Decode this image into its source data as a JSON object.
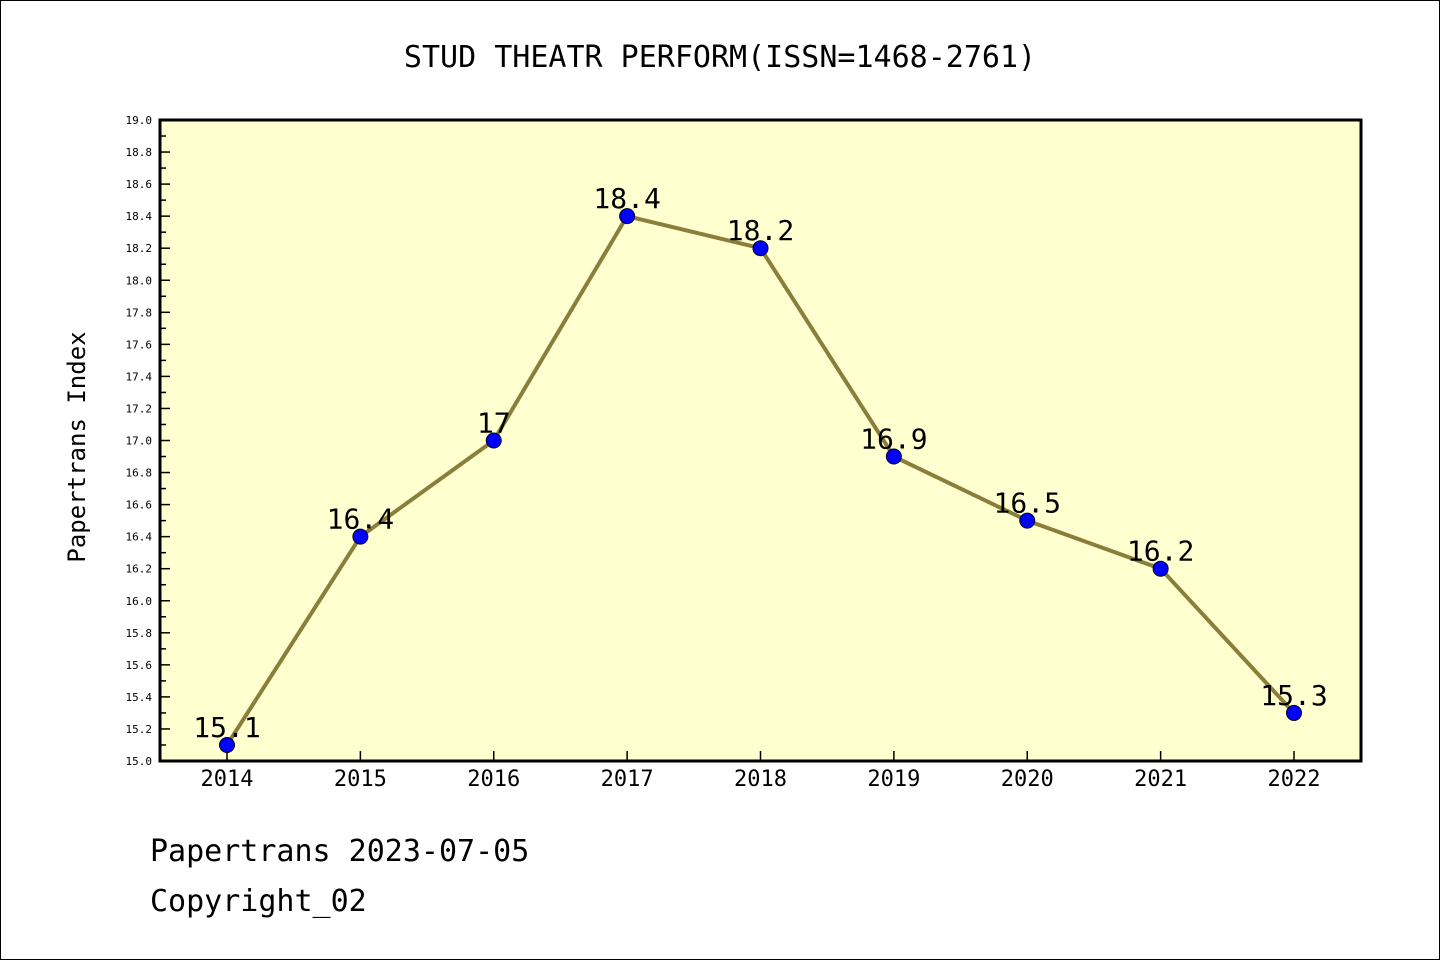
{
  "chart_data": {
    "type": "line",
    "title": "STUD THEATR PERFORM(ISSN=1468-2761)",
    "xlabel": "",
    "ylabel": "Papertrans Index",
    "categories": [
      "2014",
      "2015",
      "2016",
      "2017",
      "2018",
      "2019",
      "2020",
      "2021",
      "2022"
    ],
    "series": [
      {
        "values": [
          15.1,
          16.4,
          17,
          18.4,
          18.2,
          16.9,
          16.5,
          16.2,
          15.3
        ],
        "labels": [
          "15.1",
          "16.4",
          "17",
          "18.4",
          "18.2",
          "16.9",
          "16.5",
          "16.2",
          "15.3"
        ]
      }
    ],
    "ylim": [
      15.0,
      19.0
    ],
    "yticks": [
      "15.0",
      "15.2",
      "15.4",
      "15.6",
      "15.8",
      "16.0",
      "16.2",
      "16.4",
      "16.6",
      "16.8",
      "17.0",
      "17.2",
      "17.4",
      "17.6",
      "17.8",
      "18.0",
      "18.2",
      "18.4",
      "18.6",
      "18.8",
      "19.0"
    ],
    "grid": false,
    "colors": {
      "plot_background": "#ffffd0",
      "line": "#8b7d3a",
      "marker": "#0000ff"
    }
  },
  "footer": {
    "source": "Papertrans 2023-07-05",
    "copyright": "Copyright_02"
  }
}
